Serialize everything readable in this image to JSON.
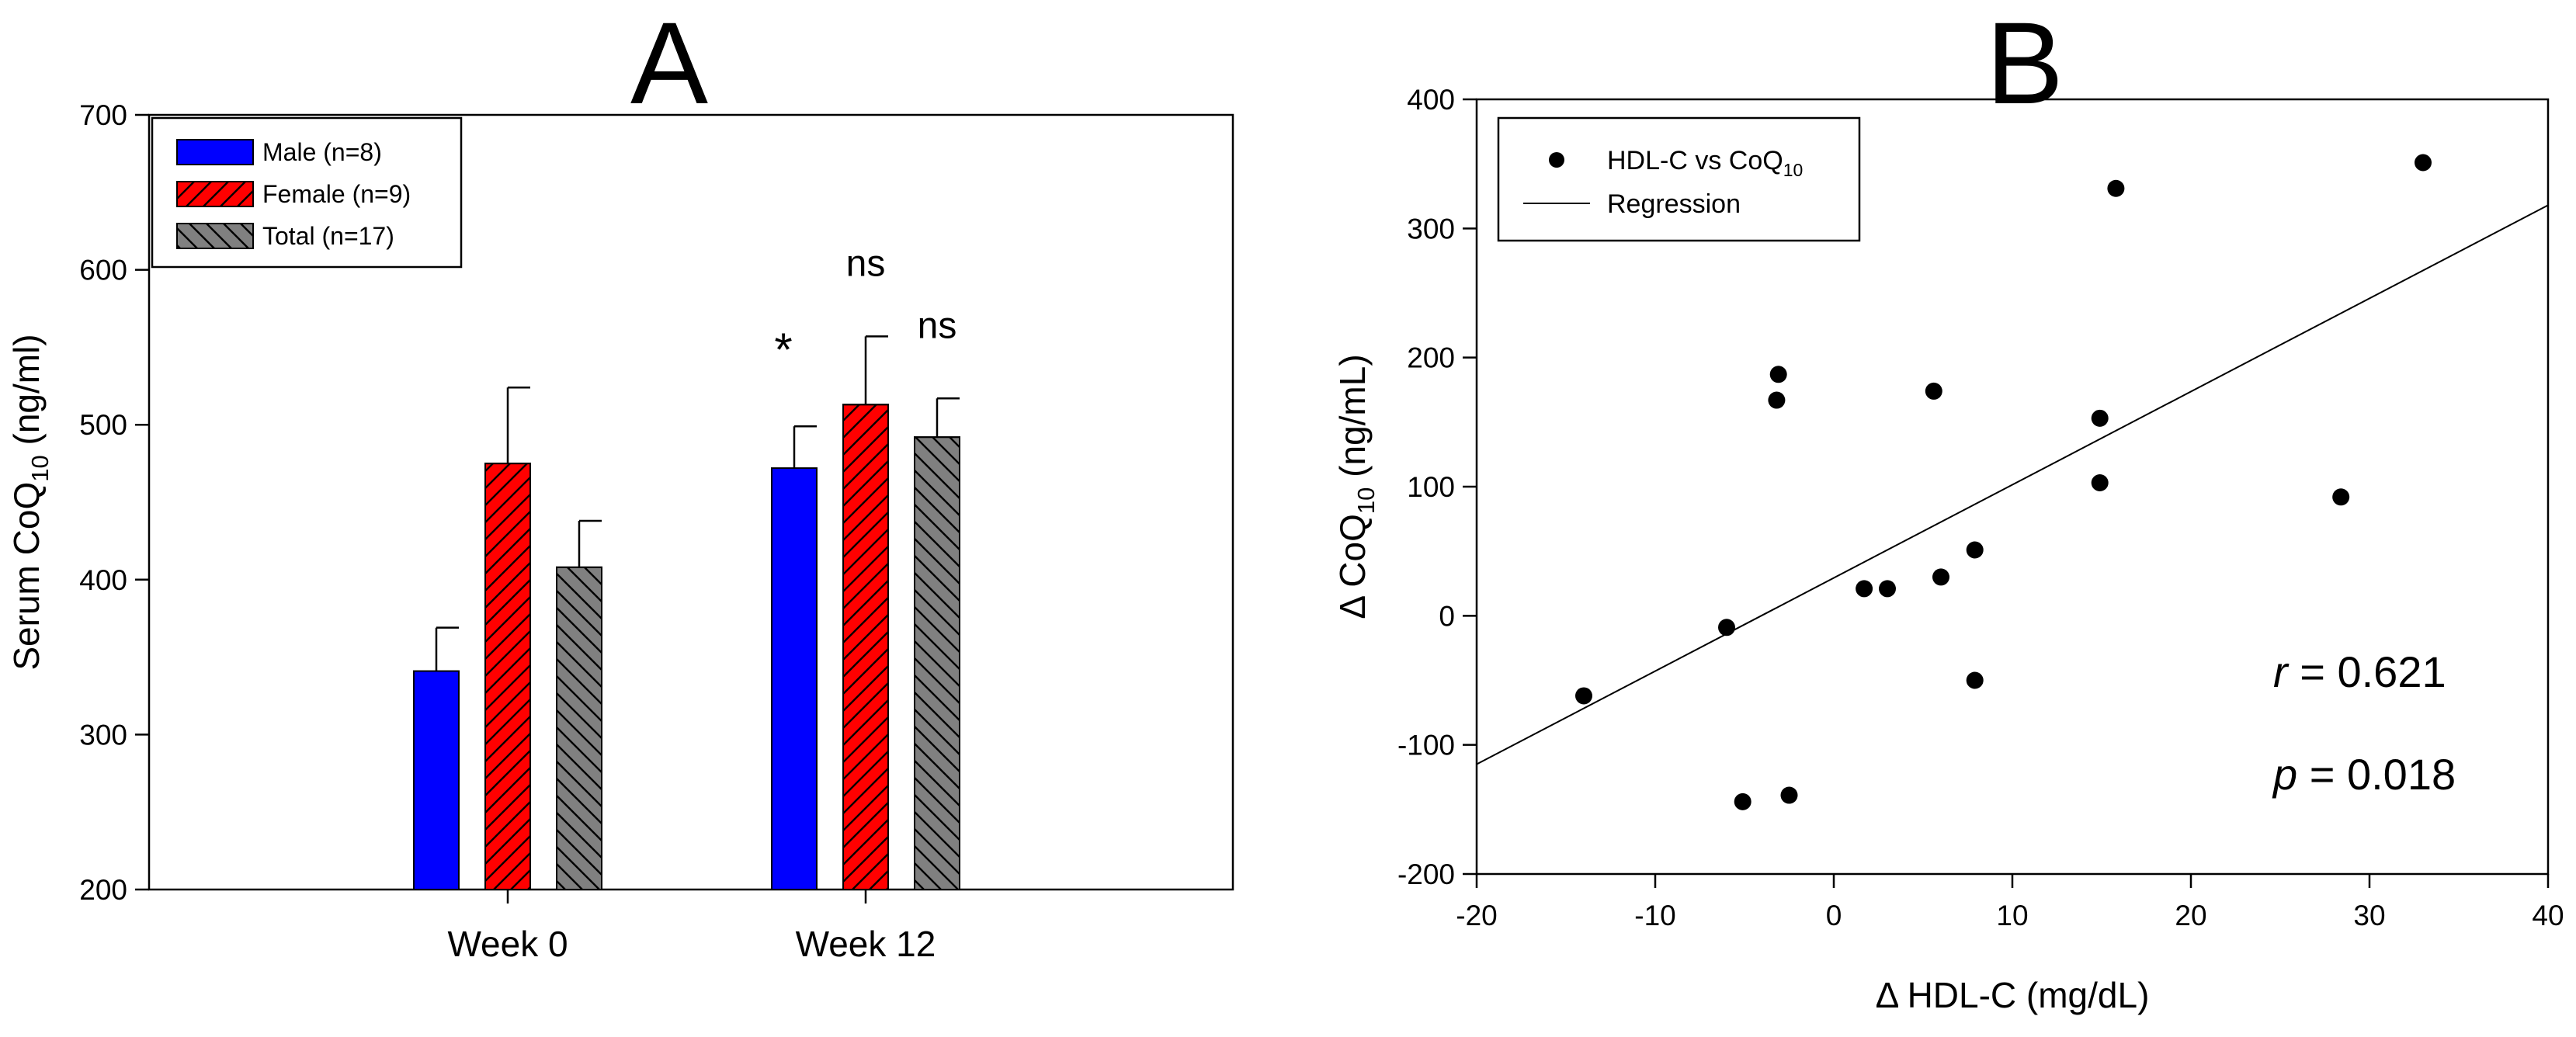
{
  "chart_data": [
    {
      "panel": "A",
      "type": "bar",
      "ylabel": "Serum CoQ",
      "ylabel_sub": "10",
      "ylabel_unit": " (ng/ml)",
      "ylim": [
        200,
        700
      ],
      "yticks": [
        200,
        300,
        400,
        500,
        600,
        700
      ],
      "categories": [
        "Week 0",
        "Week 12"
      ],
      "legend_position": "top-left",
      "series": [
        {
          "name": "Male (n=8)",
          "values": [
            341,
            472
          ],
          "errors": [
            28,
            27
          ],
          "color": "#0000ff",
          "hatch": "none"
        },
        {
          "name": "Female (n=9)",
          "values": [
            475,
            513
          ],
          "errors": [
            49,
            44
          ],
          "color": "#ff0000",
          "hatch": "forward"
        },
        {
          "name": "Total (n=17)",
          "values": [
            408,
            492
          ],
          "errors": [
            30,
            25
          ],
          "color": "#808080",
          "hatch": "backward"
        }
      ],
      "annotations": [
        {
          "category": "Week 12",
          "series": 0,
          "text": "*"
        },
        {
          "category": "Week 12",
          "series": 1,
          "text": "ns"
        },
        {
          "category": "Week 12",
          "series": 2,
          "text": "ns"
        }
      ]
    },
    {
      "panel": "B",
      "type": "scatter",
      "xlabel": "Δ HDL-C (mg/dL)",
      "ylabel": "Δ CoQ",
      "ylabel_sub": "10",
      "ylabel_unit": " (ng/mL)",
      "xlim": [
        -20,
        40
      ],
      "ylim": [
        -200,
        400
      ],
      "xticks": [
        -20,
        -10,
        0,
        10,
        20,
        30,
        40
      ],
      "yticks": [
        -200,
        -100,
        0,
        100,
        200,
        300,
        400
      ],
      "legend_position": "top-left",
      "series": [
        {
          "name": "HDL-C vs CoQ",
          "name_sub": "10",
          "points": [
            {
              "x": -14,
              "y": -62
            },
            {
              "x": -6,
              "y": -9
            },
            {
              "x": -5.1,
              "y": -144
            },
            {
              "x": -2.5,
              "y": -139
            },
            {
              "x": -3.1,
              "y": 187
            },
            {
              "x": -3.2,
              "y": 167
            },
            {
              "x": 1.7,
              "y": 21
            },
            {
              "x": 3,
              "y": 21
            },
            {
              "x": 5.6,
              "y": 174
            },
            {
              "x": 6,
              "y": 30
            },
            {
              "x": 7.9,
              "y": 51
            },
            {
              "x": 7.9,
              "y": -50
            },
            {
              "x": 14.9,
              "y": 153
            },
            {
              "x": 14.9,
              "y": 103
            },
            {
              "x": 15.8,
              "y": 331
            },
            {
              "x": 28.4,
              "y": 92
            },
            {
              "x": 33,
              "y": 351
            }
          ]
        },
        {
          "name": "Regression",
          "line": [
            {
              "x": -20,
              "y": -115
            },
            {
              "x": 40,
              "y": 318
            }
          ]
        }
      ],
      "stats": {
        "r_symbol": "r",
        "r_text": " = 0.621",
        "p_symbol": "p",
        "p_text": " = 0.018"
      }
    }
  ]
}
